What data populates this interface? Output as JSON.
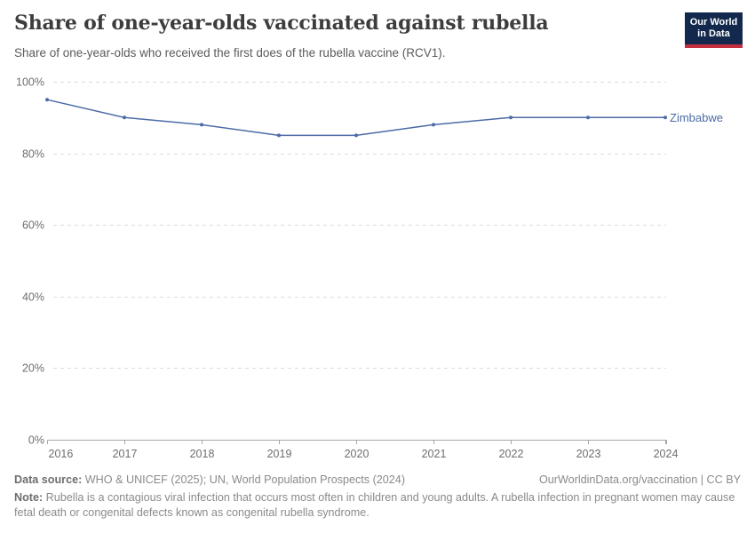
{
  "header": {
    "title": "Share of one-year-olds vaccinated against rubella",
    "subtitle": "Share of one-year-olds who received the first does of the rubella vaccine (RCV1).",
    "logo_line1": "Our World",
    "logo_line2": "in Data"
  },
  "chart_data": {
    "type": "line",
    "title": "Share of one-year-olds vaccinated against rubella",
    "x": [
      2016,
      2017,
      2018,
      2019,
      2020,
      2021,
      2022,
      2023,
      2024
    ],
    "series": [
      {
        "name": "Zimbabwe",
        "color": "#4c6ba6",
        "values": [
          95,
          90,
          88,
          85,
          85,
          88,
          90,
          90,
          90
        ]
      }
    ],
    "ylim": [
      0,
      100
    ],
    "y_ticks": [
      {
        "value": 0,
        "label": "0%"
      },
      {
        "value": 20,
        "label": "20%"
      },
      {
        "value": 40,
        "label": "40%"
      },
      {
        "value": 60,
        "label": "60%"
      },
      {
        "value": 80,
        "label": "80%"
      },
      {
        "value": 100,
        "label": "100%"
      }
    ],
    "x_tick_labels": [
      "2016",
      "2017",
      "2018",
      "2019",
      "2020",
      "2021",
      "2022",
      "2023",
      "2024"
    ],
    "xlabel": "",
    "ylabel": "",
    "grid": "horizontal-dashed",
    "legend_position": "end-of-line"
  },
  "footer": {
    "datasource_label": "Data source:",
    "datasource_text": " WHO & UNICEF (2025); UN, World Population Prospects (2024)",
    "link_text": "OurWorldinData.org/vaccination | CC BY",
    "note_label": "Note:",
    "note_text": " Rubella is a contagious viral infection that occurs most often in children and young adults. A rubella infection in pregnant women may cause fetal death or congenital defects known as congenital rubella syndrome."
  },
  "colors": {
    "series_blue": "#4c6ba6",
    "grid": "#dcdcdc",
    "axis": "#a5a5a5",
    "tick_label": "#6e6e6e",
    "title_text": "#3d3d3d",
    "subtitle_text": "#5b5b5b",
    "footer_text": "#8a8a8a",
    "footer_bold_text": "#6d6d6d",
    "logo_background": "#12294d",
    "logo_bar": "#c52e3f",
    "background": "#ffffff"
  }
}
